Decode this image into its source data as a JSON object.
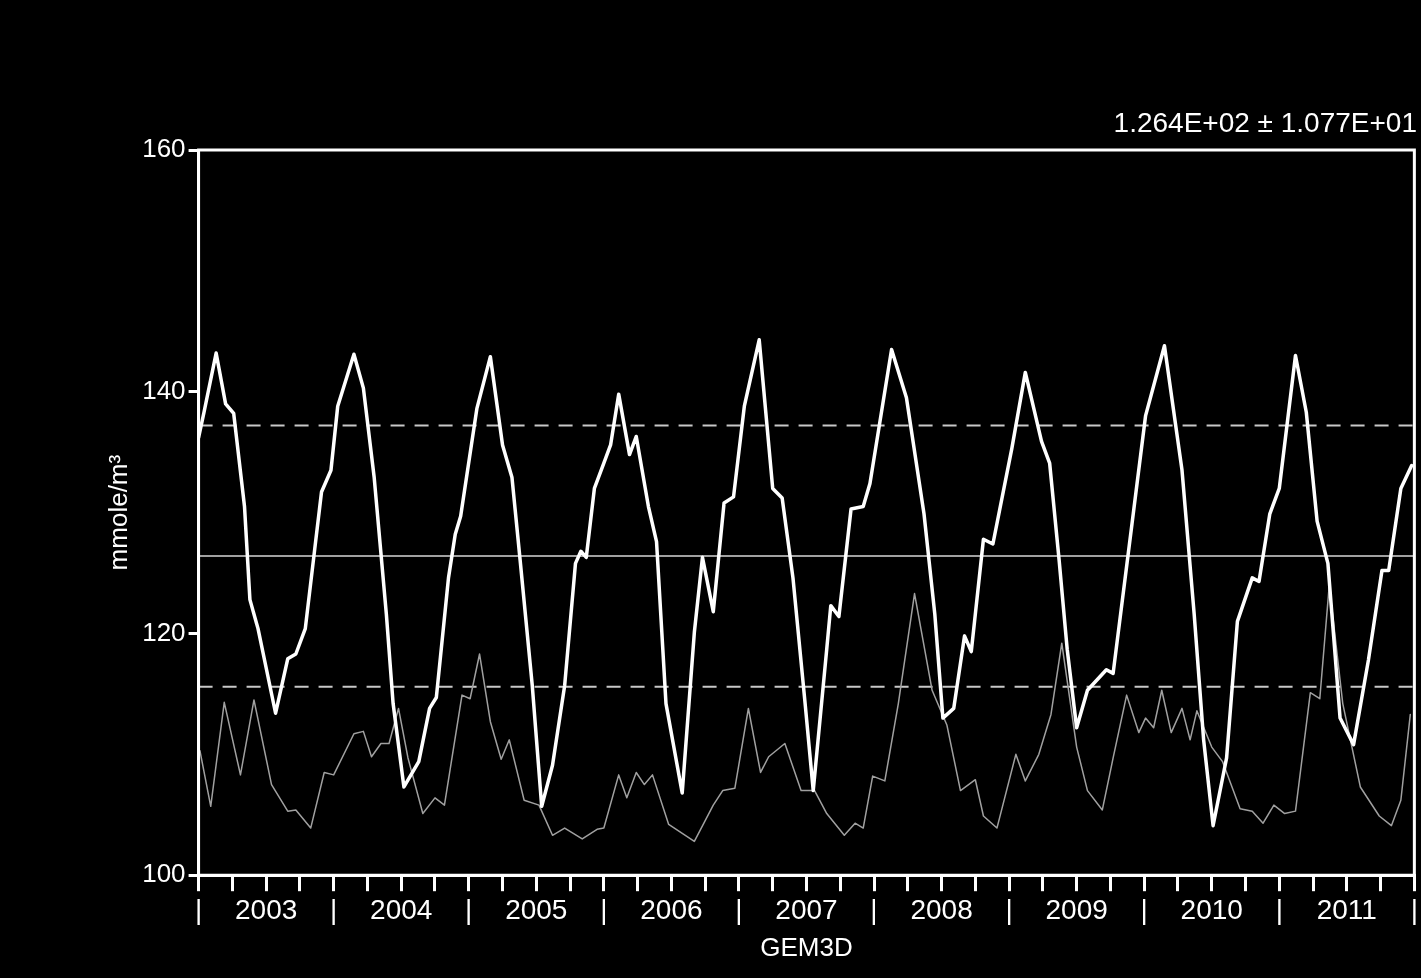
{
  "chart_data": {
    "type": "line",
    "xlabel": "GEM3D",
    "ylabel": "mmole/m³",
    "annotations": [
      "1.264E+02 ± 1.077E+01"
    ],
    "xlim": [
      2003,
      2012
    ],
    "ylim": [
      100,
      160
    ],
    "yticks": [
      100,
      120,
      140,
      160
    ],
    "xticks": [
      {
        "value": 2003,
        "label": "|"
      },
      {
        "value": 2003.25,
        "label": null
      },
      {
        "value": 2003.5,
        "label": "2003"
      },
      {
        "value": 2003.75,
        "label": null
      },
      {
        "value": 2004,
        "label": "|"
      },
      {
        "value": 2004.25,
        "label": null
      },
      {
        "value": 2004.5,
        "label": "2004"
      },
      {
        "value": 2004.75,
        "label": null
      },
      {
        "value": 2005,
        "label": "|"
      },
      {
        "value": 2005.25,
        "label": null
      },
      {
        "value": 2005.5,
        "label": "2005"
      },
      {
        "value": 2005.75,
        "label": null
      },
      {
        "value": 2006,
        "label": "|"
      },
      {
        "value": 2006.25,
        "label": null
      },
      {
        "value": 2006.5,
        "label": "2006"
      },
      {
        "value": 2006.75,
        "label": null
      },
      {
        "value": 2007,
        "label": "|"
      },
      {
        "value": 2007.25,
        "label": null
      },
      {
        "value": 2007.5,
        "label": "2007"
      },
      {
        "value": 2007.75,
        "label": null
      },
      {
        "value": 2008,
        "label": "|"
      },
      {
        "value": 2008.25,
        "label": null
      },
      {
        "value": 2008.5,
        "label": "2008"
      },
      {
        "value": 2008.75,
        "label": null
      },
      {
        "value": 2009,
        "label": "|"
      },
      {
        "value": 2009.25,
        "label": null
      },
      {
        "value": 2009.5,
        "label": "2009"
      },
      {
        "value": 2009.75,
        "label": null
      },
      {
        "value": 2010,
        "label": "|"
      },
      {
        "value": 2010.25,
        "label": null
      },
      {
        "value": 2010.5,
        "label": "2010"
      },
      {
        "value": 2010.75,
        "label": null
      },
      {
        "value": 2011,
        "label": "|"
      },
      {
        "value": 2011.25,
        "label": null
      },
      {
        "value": 2011.5,
        "label": "2011"
      },
      {
        "value": 2011.75,
        "label": null
      },
      {
        "value": 2012,
        "label": "|"
      }
    ],
    "grid": false,
    "legend": false,
    "marker": "none",
    "line_style": "solid",
    "ref_lines": [
      {
        "axis": "y",
        "value": 126.4,
        "label": null,
        "color": "#a0a0a0",
        "line_style": "solid"
      },
      {
        "axis": "y",
        "value": 137.2,
        "label": null,
        "color": "#c8c8c8",
        "line_style": "dashed"
      },
      {
        "axis": "y",
        "value": 115.6,
        "label": null,
        "color": "#c8c8c8",
        "line_style": "dashed"
      }
    ],
    "series": [
      {
        "color": "#ffffff",
        "x": [
          2003.0,
          2003.04,
          2003.13,
          2003.2,
          2003.26,
          2003.34,
          2003.38,
          2003.44,
          2003.57,
          2003.66,
          2003.72,
          2003.79,
          2003.86,
          2003.91,
          2003.98,
          2004.03,
          2004.15,
          2004.22,
          2004.3,
          2004.39,
          2004.44,
          2004.52,
          2004.63,
          2004.71,
          2004.76,
          2004.85,
          2004.9,
          2004.94,
          2005.06,
          2005.16,
          2005.25,
          2005.32,
          2005.38,
          2005.47,
          2005.54,
          2005.62,
          2005.71,
          2005.79,
          2005.83,
          2005.87,
          2005.93,
          2006.0,
          2006.05,
          2006.11,
          2006.19,
          2006.24,
          2006.33,
          2006.39,
          2006.46,
          2006.58,
          2006.67,
          2006.73,
          2006.81,
          2006.89,
          2006.96,
          2007.04,
          2007.15,
          2007.25,
          2007.32,
          2007.4,
          2007.49,
          2007.55,
          2007.65,
          2007.68,
          2007.74,
          2007.83,
          2007.92,
          2007.97,
          2008.13,
          2008.24,
          2008.37,
          2008.45,
          2008.51,
          2008.59,
          2008.67,
          2008.72,
          2008.81,
          2008.88,
          2009.02,
          2009.12,
          2009.24,
          2009.3,
          2009.37,
          2009.43,
          2009.5,
          2009.58,
          2009.72,
          2009.77,
          2009.91,
          2010.01,
          2010.15,
          2010.28,
          2010.37,
          2010.44,
          2010.51,
          2010.61,
          2010.69,
          2010.8,
          2010.85,
          2010.93,
          2011.0,
          2011.12,
          2011.2,
          2011.28,
          2011.36,
          2011.45,
          2011.55,
          2011.66,
          2011.76,
          2011.81,
          2011.9,
          2011.98
        ],
        "values": [
          136.2,
          138.3,
          143.2,
          139.0,
          138.2,
          130.5,
          122.8,
          120.4,
          113.4,
          117.9,
          118.3,
          120.4,
          127.0,
          131.7,
          133.5,
          138.8,
          143.1,
          140.3,
          132.9,
          121.6,
          114.2,
          107.3,
          109.4,
          113.8,
          114.7,
          124.6,
          128.2,
          129.7,
          138.6,
          142.9,
          135.6,
          132.9,
          126.1,
          115.7,
          105.7,
          109.1,
          115.7,
          125.8,
          126.8,
          126.3,
          132.0,
          134.1,
          135.6,
          139.8,
          134.8,
          136.3,
          130.5,
          127.6,
          114.2,
          106.8,
          120.1,
          126.3,
          121.8,
          130.8,
          131.3,
          138.8,
          144.3,
          132.0,
          131.2,
          124.6,
          114.2,
          107.0,
          118.7,
          122.3,
          121.4,
          130.3,
          130.5,
          132.4,
          143.5,
          139.5,
          129.9,
          121.6,
          113.0,
          113.8,
          119.8,
          118.5,
          127.8,
          127.4,
          135.3,
          141.6,
          135.9,
          134.1,
          126.1,
          118.7,
          112.2,
          115.3,
          117.0,
          116.7,
          129.1,
          138.0,
          143.8,
          133.5,
          121.6,
          111.2,
          104.1,
          109.7,
          121.0,
          124.6,
          124.3,
          129.9,
          132.0,
          143.0,
          138.3,
          129.3,
          125.8,
          113.0,
          110.8,
          117.8,
          125.2,
          125.2,
          132.0,
          133.9
        ]
      },
      {
        "color": "#a0a0a0",
        "x": [
          2003.01,
          2003.09,
          2003.19,
          2003.31,
          2003.41,
          2003.54,
          2003.66,
          2003.72,
          2003.83,
          2003.93,
          2004.0,
          2004.15,
          2004.22,
          2004.28,
          2004.35,
          2004.41,
          2004.48,
          2004.55,
          2004.66,
          2004.75,
          2004.82,
          2004.95,
          2005.01,
          2005.08,
          2005.16,
          2005.24,
          2005.3,
          2005.41,
          2005.52,
          2005.62,
          2005.71,
          2005.84,
          2005.95,
          2006.0,
          2006.11,
          2006.17,
          2006.24,
          2006.3,
          2006.36,
          2006.48,
          2006.67,
          2006.81,
          2006.88,
          2006.97,
          2007.07,
          2007.16,
          2007.22,
          2007.34,
          2007.46,
          2007.56,
          2007.65,
          2007.78,
          2007.86,
          2007.92,
          2007.99,
          2008.08,
          2008.18,
          2008.3,
          2008.43,
          2008.54,
          2008.64,
          2008.75,
          2008.81,
          2008.91,
          2009.05,
          2009.12,
          2009.22,
          2009.31,
          2009.39,
          2009.5,
          2009.58,
          2009.69,
          2009.77,
          2009.87,
          2009.96,
          2010.01,
          2010.07,
          2010.13,
          2010.2,
          2010.28,
          2010.34,
          2010.39,
          2010.5,
          2010.58,
          2010.71,
          2010.8,
          2010.88,
          2010.96,
          2011.04,
          2011.12,
          2011.23,
          2011.3,
          2011.37,
          2011.47,
          2011.6,
          2011.74,
          2011.83,
          2011.9,
          2011.97
        ],
        "values": [
          110.3,
          105.7,
          114.3,
          108.3,
          114.5,
          107.5,
          105.3,
          105.4,
          103.9,
          108.5,
          108.3,
          111.7,
          111.9,
          109.8,
          110.9,
          110.9,
          113.8,
          109.7,
          105.1,
          106.4,
          105.8,
          114.9,
          114.6,
          118.3,
          112.7,
          109.6,
          111.2,
          106.2,
          105.8,
          103.3,
          103.9,
          103.0,
          103.8,
          103.9,
          108.3,
          106.4,
          108.5,
          107.5,
          108.3,
          104.2,
          102.8,
          105.8,
          107.0,
          107.2,
          113.8,
          108.5,
          109.8,
          110.9,
          107.0,
          107.0,
          105.1,
          103.3,
          104.3,
          103.9,
          108.2,
          107.8,
          114.2,
          123.3,
          115.3,
          112.4,
          107.0,
          107.9,
          104.9,
          103.9,
          110.0,
          107.8,
          110.0,
          113.3,
          119.2,
          110.6,
          107.0,
          105.4,
          109.7,
          114.9,
          111.8,
          113.0,
          112.2,
          115.3,
          111.8,
          113.8,
          111.2,
          113.6,
          110.6,
          109.4,
          105.5,
          105.3,
          104.3,
          105.8,
          105.1,
          105.3,
          115.1,
          114.6,
          124.0,
          114.2,
          107.3,
          104.9,
          104.1,
          106.2,
          113.3
        ]
      }
    ]
  }
}
